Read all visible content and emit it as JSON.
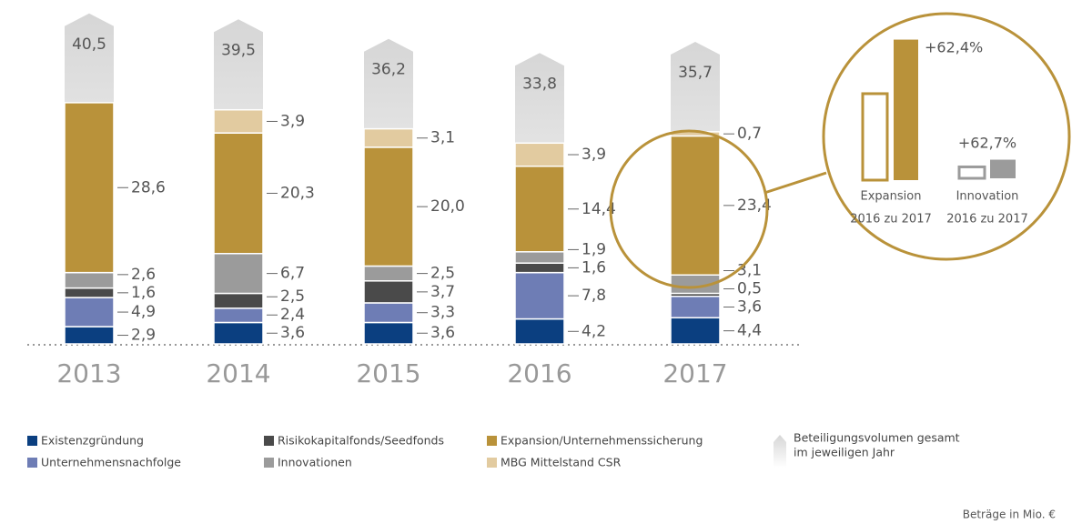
{
  "chart_data": {
    "type": "stacked_bar",
    "categories": [
      "2013",
      "2014",
      "2015",
      "2016",
      "2017"
    ],
    "series": [
      {
        "name": "Existenzgründung",
        "color": "#0b3f80",
        "values": [
          2.9,
          3.6,
          3.6,
          4.2,
          4.4
        ],
        "value_labels": [
          "2,9",
          "3,6",
          "3,6",
          "4,2",
          "4,4"
        ]
      },
      {
        "name": "Unternehmensnachfolge",
        "color": "#6e7db5",
        "values": [
          4.9,
          2.4,
          3.3,
          7.8,
          3.6
        ],
        "value_labels": [
          "4,9",
          "2,4",
          "3,3",
          "7,8",
          "3,6"
        ]
      },
      {
        "name": "Risikokapitalfonds/Seedfonds",
        "color": "#4a4a4a",
        "values": [
          1.6,
          2.5,
          3.7,
          1.6,
          0.5
        ],
        "value_labels": [
          "1,6",
          "2,5",
          "3,7",
          "1,6",
          "0,5"
        ]
      },
      {
        "name": "Innovationen",
        "color": "#9b9b9b",
        "values": [
          2.6,
          6.7,
          2.5,
          1.9,
          3.1
        ],
        "value_labels": [
          "2,6",
          "6,7",
          "2,5",
          "1,9",
          "3,1"
        ]
      },
      {
        "name": "Expansion/Unternehmenssicherung",
        "color": "#b9923a",
        "values": [
          28.6,
          20.3,
          20.0,
          14.4,
          23.4
        ],
        "value_labels": [
          "28,6",
          "20,3",
          "20,0",
          "14,4",
          "23,4"
        ]
      },
      {
        "name": "MBG Mittelstand CSR",
        "color": "#e2cba0",
        "values": [
          null,
          3.9,
          3.1,
          3.9,
          0.7
        ],
        "value_labels": [
          null,
          "3,9",
          "3,1",
          "3,9",
          "0,7"
        ]
      }
    ],
    "totals": [
      40.5,
      39.5,
      36.2,
      33.8,
      35.7
    ],
    "total_labels": [
      "40,5",
      "39,5",
      "36,2",
      "33,8",
      "35,7"
    ],
    "total_name": [
      "Beteiligungsvolumen gesamt",
      "im jeweiligen Jahr"
    ],
    "callout": {
      "expansion": {
        "change": "+62,4%",
        "label": "Expansion",
        "period": "2016 zu 2017"
      },
      "innovation": {
        "change": "+62,7%",
        "label": "Innovation",
        "period": "2016 zu 2017"
      }
    },
    "note": "Beträge in Mio. €"
  }
}
